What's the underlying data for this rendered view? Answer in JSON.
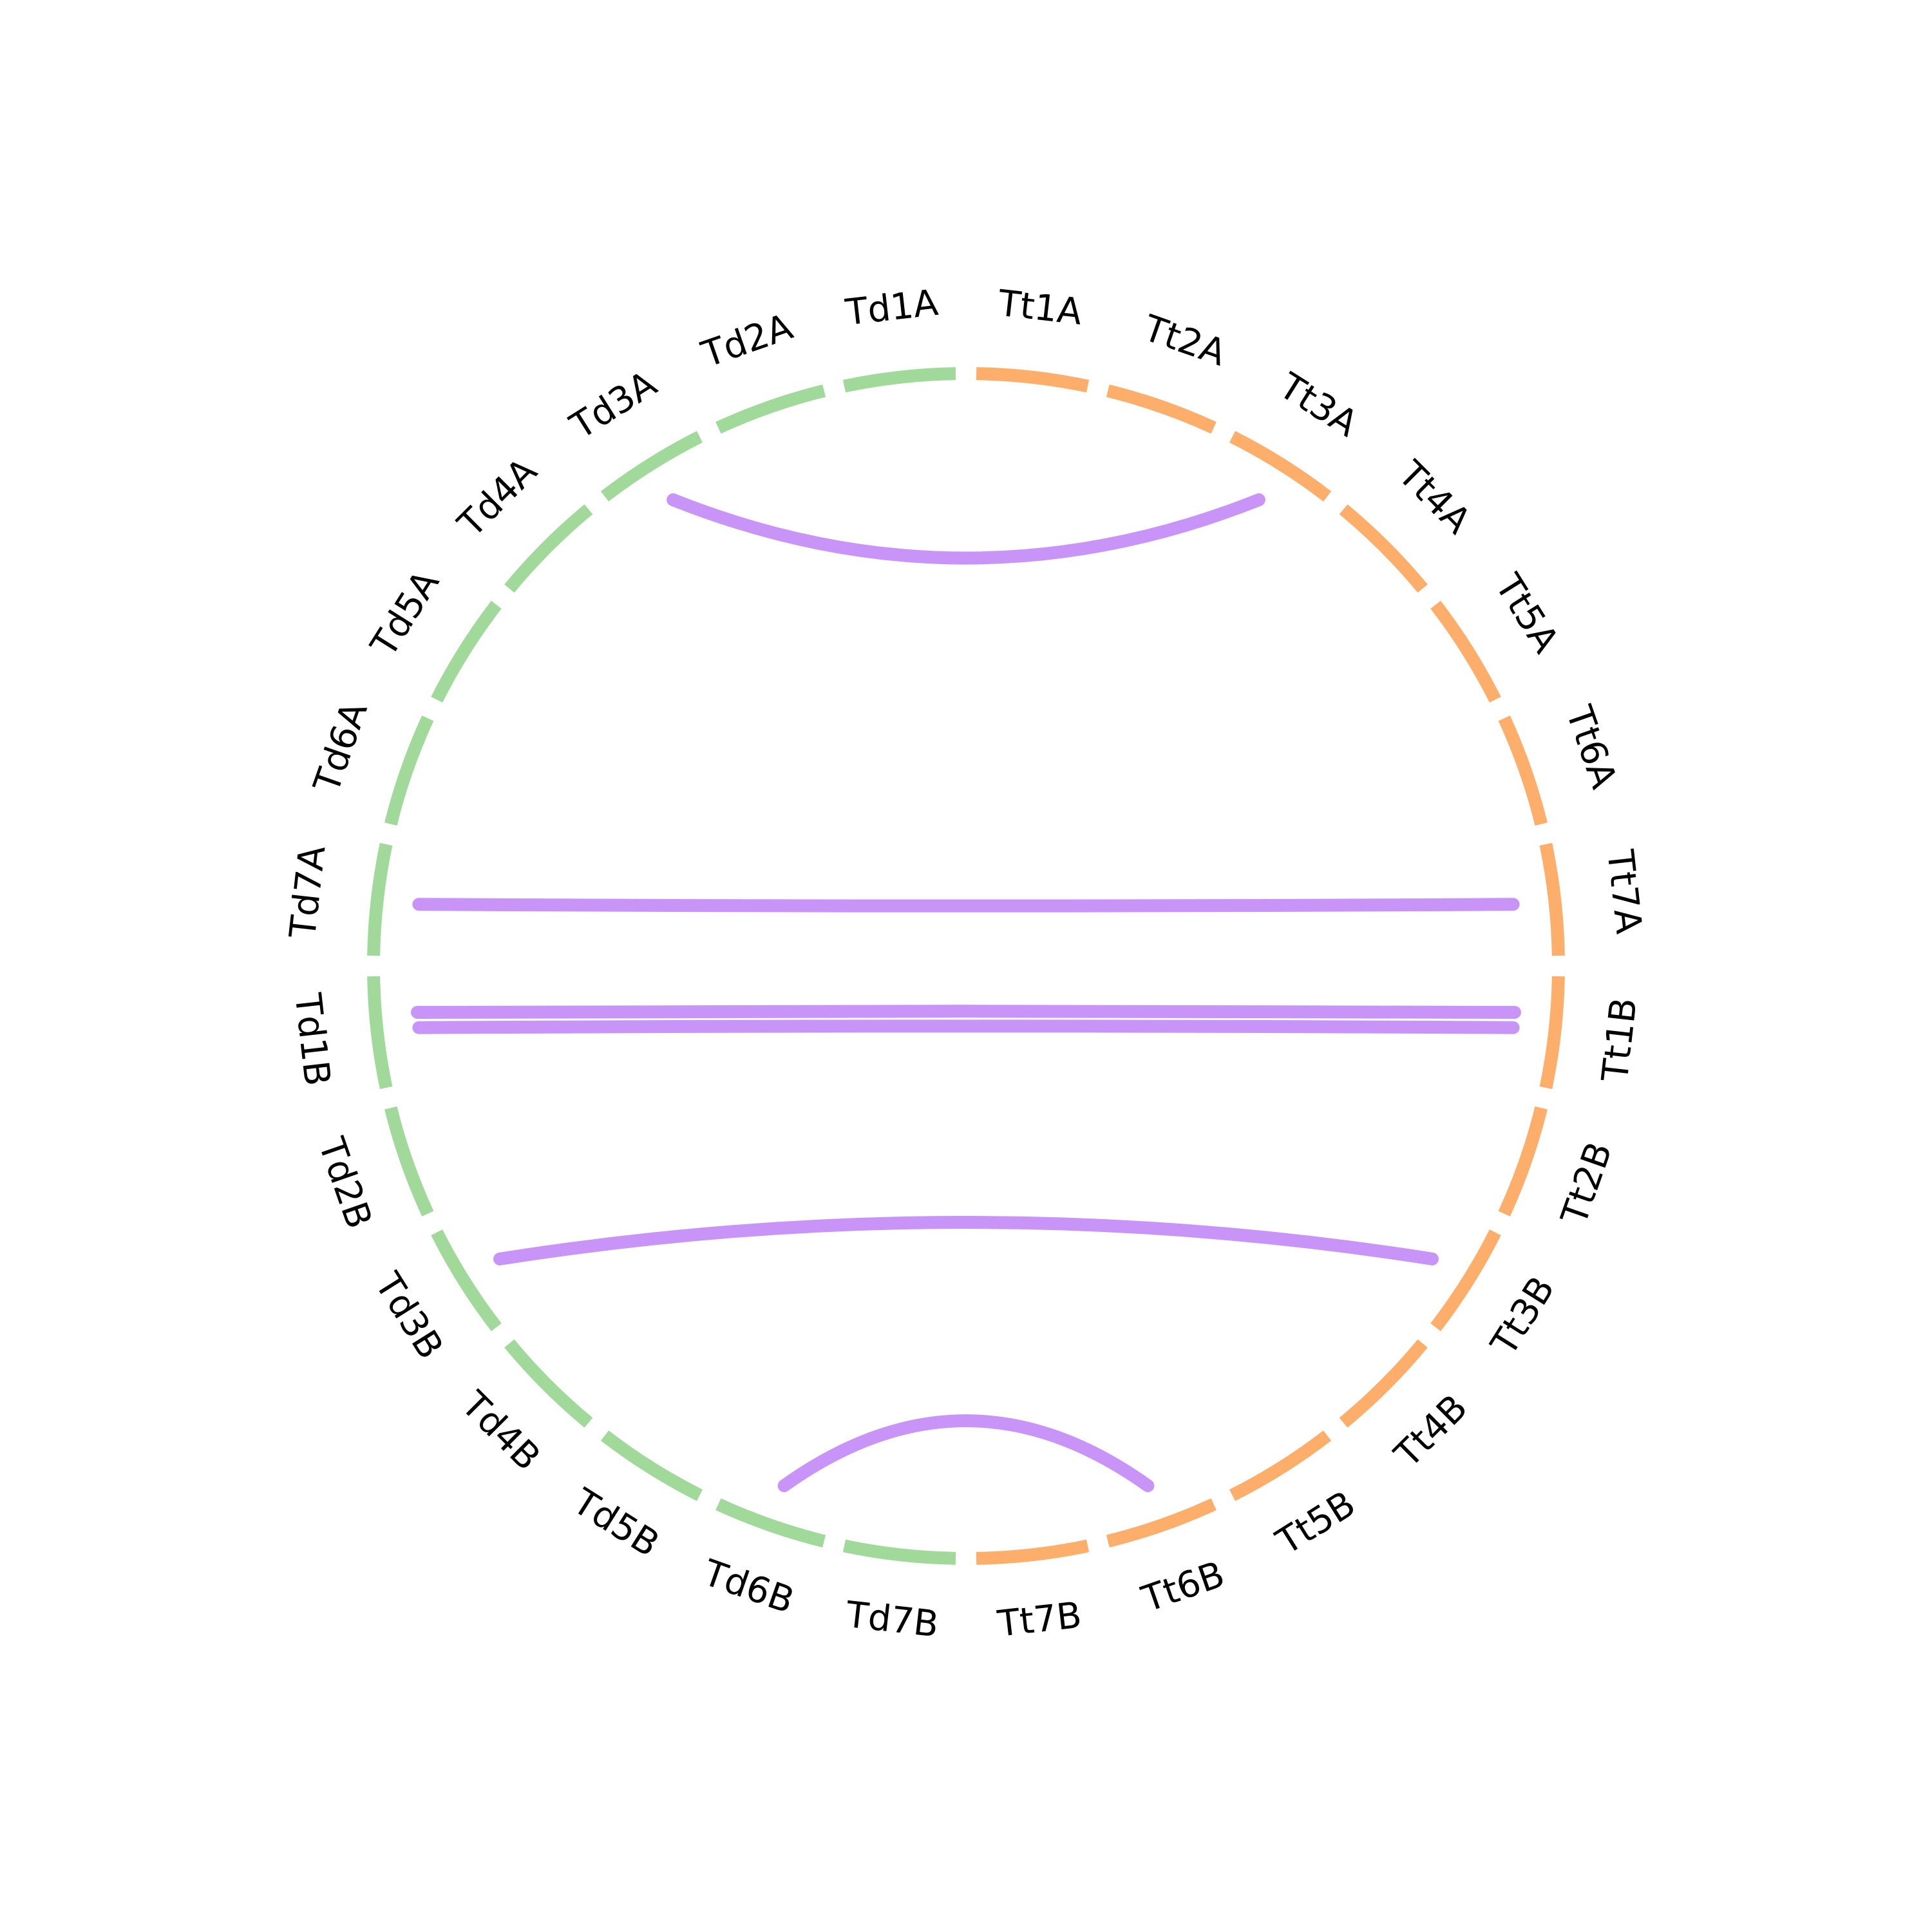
{
  "diagram": {
    "type": "circos",
    "segments": [
      {
        "name": "Tt1A",
        "group": "Tt"
      },
      {
        "name": "Tt2A",
        "group": "Tt"
      },
      {
        "name": "Tt3A",
        "group": "Tt"
      },
      {
        "name": "Tt4A",
        "group": "Tt"
      },
      {
        "name": "Tt5A",
        "group": "Tt"
      },
      {
        "name": "Tt6A",
        "group": "Tt"
      },
      {
        "name": "Tt7A",
        "group": "Tt"
      },
      {
        "name": "Tt1B",
        "group": "Tt"
      },
      {
        "name": "Tt2B",
        "group": "Tt"
      },
      {
        "name": "Tt3B",
        "group": "Tt"
      },
      {
        "name": "Tt4B",
        "group": "Tt"
      },
      {
        "name": "Tt5B",
        "group": "Tt"
      },
      {
        "name": "Tt6B",
        "group": "Tt"
      },
      {
        "name": "Tt7B",
        "group": "Tt"
      },
      {
        "name": "Td7B",
        "group": "Td"
      },
      {
        "name": "Td6B",
        "group": "Td"
      },
      {
        "name": "Td5B",
        "group": "Td"
      },
      {
        "name": "Td4B",
        "group": "Td"
      },
      {
        "name": "Td3B",
        "group": "Td"
      },
      {
        "name": "Td2B",
        "group": "Td"
      },
      {
        "name": "Td1B",
        "group": "Td"
      },
      {
        "name": "Td7A",
        "group": "Td"
      },
      {
        "name": "Td6A",
        "group": "Td"
      },
      {
        "name": "Td5A",
        "group": "Td"
      },
      {
        "name": "Td4A",
        "group": "Td"
      },
      {
        "name": "Td3A",
        "group": "Td"
      },
      {
        "name": "Td2A",
        "group": "Td"
      },
      {
        "name": "Td1A",
        "group": "Td"
      }
    ],
    "group_colors": {
      "Tt": "#fdae6b",
      "Td": "#a1d99b"
    },
    "link_color": "#c994f7",
    "links": [
      {
        "from": "Td3A",
        "to": "Tt3A"
      },
      {
        "from": "Td7A",
        "to": "Tt7A"
      },
      {
        "from": "Td1B",
        "to": "Tt1B"
      },
      {
        "from": "Td1B",
        "to": "Tt1B"
      },
      {
        "from": "Td3B",
        "to": "Tt3B"
      },
      {
        "from": "Td6B",
        "to": "Tt6B"
      }
    ]
  }
}
